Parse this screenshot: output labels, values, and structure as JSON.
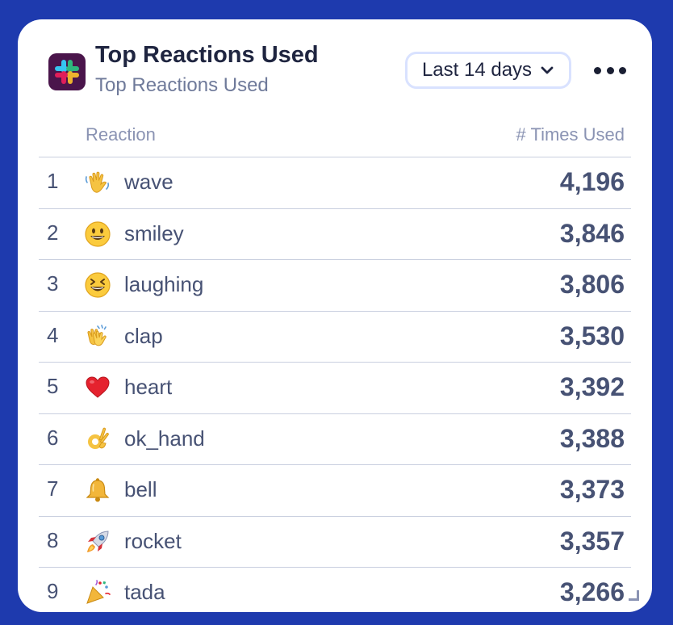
{
  "widget": {
    "title": "Top Reactions Used",
    "subtitle": "Top Reactions Used",
    "app_icon": "slack-logo-icon",
    "range_label": "Last 14 days",
    "more_icon": "more-horizontal-icon"
  },
  "table": {
    "columns": [
      "Reaction",
      "# Times Used"
    ],
    "rows": [
      {
        "rank": "1",
        "emoji": "wave",
        "name": "wave",
        "count": "4,196"
      },
      {
        "rank": "2",
        "emoji": "smiley",
        "name": "smiley",
        "count": "3,846"
      },
      {
        "rank": "3",
        "emoji": "laughing",
        "name": "laughing",
        "count": "3,806"
      },
      {
        "rank": "4",
        "emoji": "clap",
        "name": "clap",
        "count": "3,530"
      },
      {
        "rank": "5",
        "emoji": "heart",
        "name": "heart",
        "count": "3,392"
      },
      {
        "rank": "6",
        "emoji": "ok_hand",
        "name": "ok_hand",
        "count": "3,388"
      },
      {
        "rank": "7",
        "emoji": "bell",
        "name": "bell",
        "count": "3,373"
      },
      {
        "rank": "8",
        "emoji": "rocket",
        "name": "rocket",
        "count": "3,357"
      },
      {
        "rank": "9",
        "emoji": "tada",
        "name": "tada",
        "count": "3,266"
      }
    ]
  },
  "colors": {
    "page_background": "#1e3aae",
    "card": "#ffffff",
    "text_primary": "#1f2540",
    "text_secondary": "#6f7a9a",
    "row_text": "#475274",
    "divider": "#c9cfdf",
    "button_border": "#d9e2ff",
    "slack_purple": "#4a154b"
  }
}
